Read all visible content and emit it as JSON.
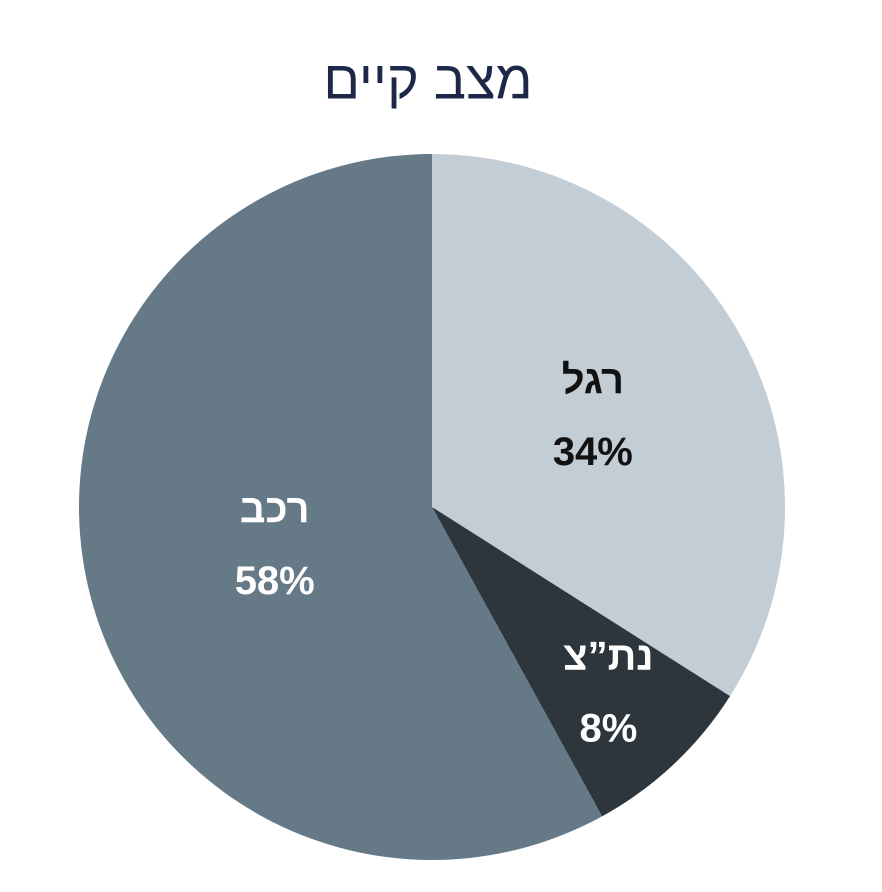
{
  "chart_data": {
    "type": "pie",
    "title": "מצב קיים",
    "categories": [
      "רגל",
      "נת”צ",
      "רכב"
    ],
    "values": [
      34,
      8,
      58
    ],
    "value_labels": [
      "34%",
      "8%",
      "58%"
    ],
    "colors": [
      "#c3cdd5",
      "#2c363c",
      "#657987"
    ],
    "label_colors": [
      "#111111",
      "#ffffff",
      "#ffffff"
    ]
  }
}
